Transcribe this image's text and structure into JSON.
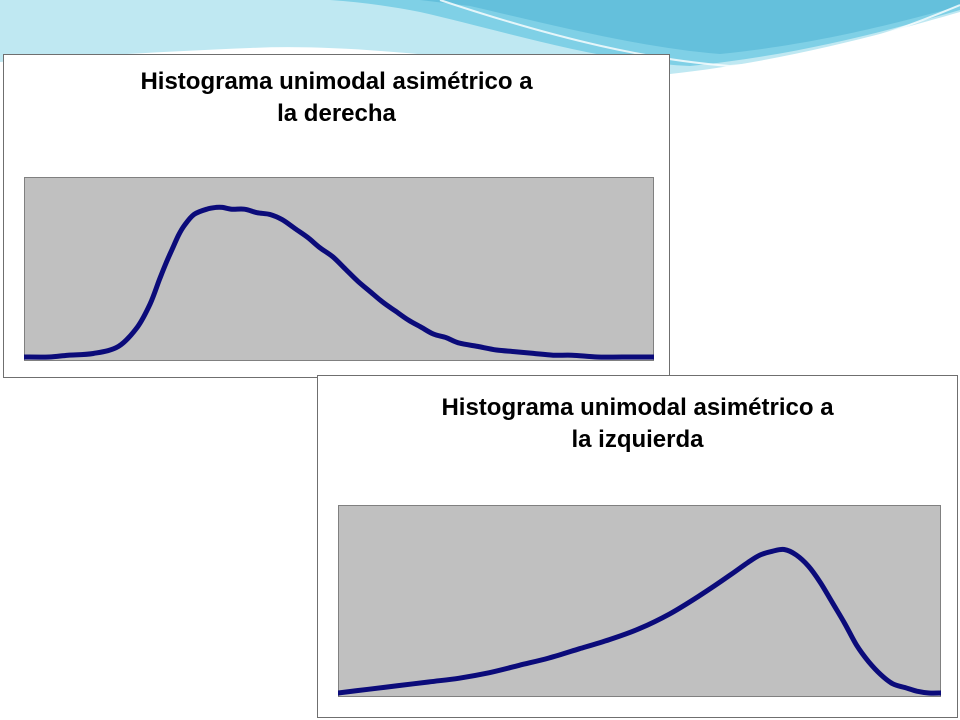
{
  "colors": {
    "plot_area": "#c0c0c0",
    "curve": "#0b0b7a",
    "wave_light": "#bfe8f2",
    "wave_mid": "#7fd0e6",
    "wave_dark": "#4fb3d4"
  },
  "chart_data": [
    {
      "type": "line",
      "title_lines": [
        "Histograma unimodal asimétrico a",
        "la derecha"
      ],
      "xlabel": "",
      "ylabel": "",
      "grid": false,
      "legend": "none",
      "xlim": [
        0,
        100
      ],
      "ylim": [
        0,
        100
      ],
      "series": [
        {
          "x": [
            0,
            4,
            7,
            11,
            15,
            18,
            20,
            21.5,
            22.5,
            23.5,
            24.5,
            25.5,
            27,
            29,
            30.5,
            31.5,
            33,
            35,
            37,
            39,
            41,
            43,
            45,
            47,
            49,
            51,
            53,
            55,
            57,
            59,
            61,
            63,
            65,
            67,
            69,
            72,
            75,
            78,
            81,
            84,
            87,
            91,
            95,
            100
          ],
          "y": [
            0,
            0,
            1,
            2,
            6,
            17,
            30,
            44,
            53,
            61,
            69,
            75,
            81,
            84,
            85,
            85,
            84,
            84,
            82,
            81,
            78,
            73,
            68,
            62,
            57,
            50,
            43,
            37,
            31,
            26,
            21,
            17,
            13,
            11,
            8,
            6,
            4,
            3,
            2,
            1,
            1,
            0,
            0,
            0
          ]
        }
      ]
    },
    {
      "type": "line",
      "title_lines": [
        "Histograma unimodal asimétrico a",
        "la izquierda"
      ],
      "xlabel": "",
      "ylabel": "",
      "grid": false,
      "legend": "none",
      "xlim": [
        0,
        100
      ],
      "ylim": [
        0,
        100
      ],
      "series": [
        {
          "x": [
            0,
            5,
            10,
            15,
            20,
            25,
            30,
            35,
            40,
            45,
            50,
            55,
            60,
            65,
            68,
            70,
            72,
            74,
            76,
            78,
            80,
            82,
            84,
            86,
            88,
            90,
            92,
            94,
            96,
            98,
            100
          ],
          "y": [
            0,
            2,
            4,
            6,
            8,
            11,
            15,
            19,
            24,
            29,
            35,
            43,
            53,
            64,
            71,
            75,
            77,
            78,
            75,
            69,
            60,
            49,
            38,
            26,
            17,
            10,
            5,
            3,
            1,
            0,
            0
          ]
        }
      ]
    }
  ]
}
